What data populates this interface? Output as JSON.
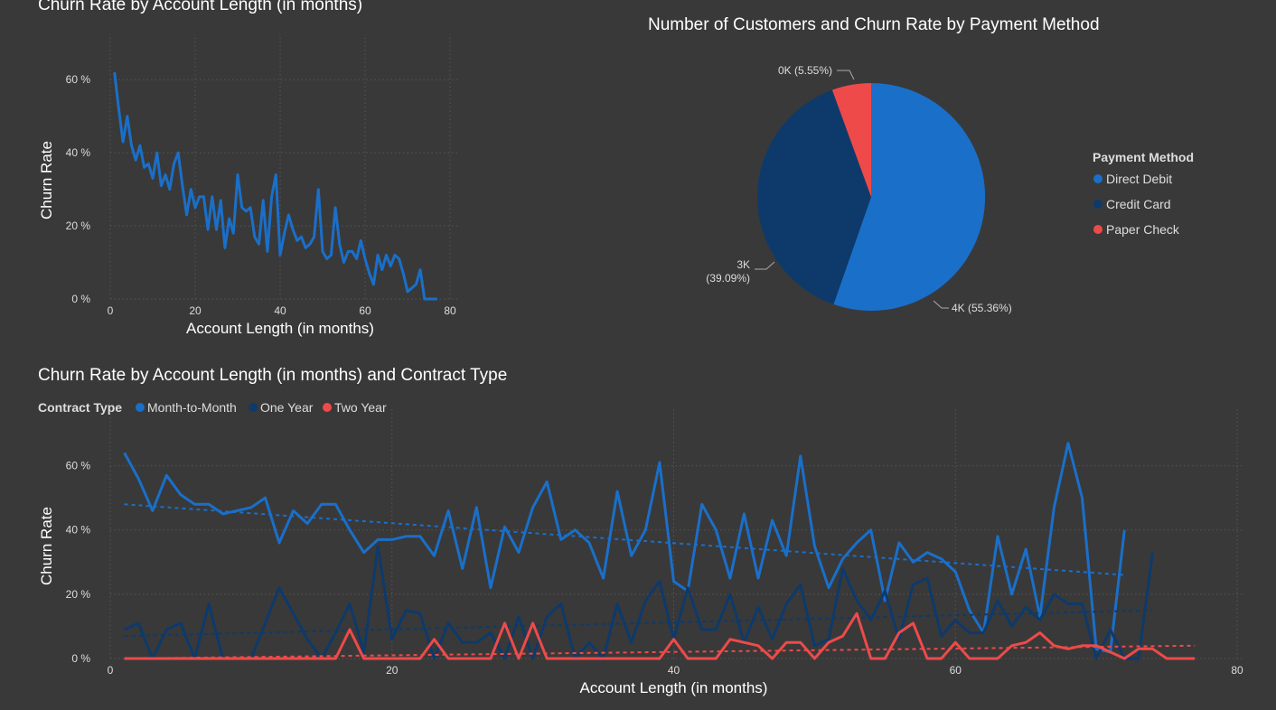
{
  "chart_data": [
    {
      "type": "line",
      "title": "Churn Rate by Account Length (in months)",
      "xlabel": "Account Length (in months)",
      "ylabel": "Churn Rate",
      "xlim": [
        0,
        80
      ],
      "ylim": [
        0,
        65
      ],
      "x_ticks": [
        0,
        20,
        40,
        60,
        80
      ],
      "y_ticks": [
        0,
        20,
        40,
        60
      ],
      "y_tick_labels": [
        "0 %",
        "20 %",
        "40 %",
        "60 %"
      ],
      "grid": true,
      "series": [
        {
          "x": [
            1,
            2,
            3,
            4,
            5,
            6,
            7,
            8,
            9,
            10,
            11,
            12,
            13,
            14,
            15,
            16,
            17,
            18,
            19,
            20,
            21,
            22,
            23,
            24,
            25,
            26,
            27,
            28,
            29,
            30,
            31,
            32,
            33,
            34,
            35,
            36,
            37,
            38,
            39,
            40,
            41,
            42,
            43,
            44,
            45,
            46,
            47,
            48,
            49,
            50,
            51,
            52,
            53,
            54,
            55,
            56,
            57,
            58,
            59,
            60,
            61,
            62,
            63,
            64,
            65,
            66,
            67,
            68,
            69,
            70,
            71,
            72,
            73,
            74,
            75,
            76,
            77
          ],
          "y": [
            62,
            52,
            43,
            50,
            42,
            38,
            42,
            36,
            37,
            33,
            40,
            31,
            34,
            30,
            37,
            40,
            31,
            23,
            30,
            25,
            28,
            28,
            19,
            28,
            19,
            27,
            14,
            22,
            18,
            34,
            25,
            24,
            25,
            17,
            15,
            27,
            13,
            28,
            34,
            12,
            18,
            23,
            19,
            16,
            17,
            14,
            15,
            17,
            30,
            13,
            11,
            12,
            25,
            15,
            10,
            13,
            13,
            11,
            16,
            11,
            7,
            4,
            12,
            8,
            12,
            9,
            12,
            11,
            7,
            2,
            3,
            4,
            8,
            0,
            0,
            0,
            0
          ]
        }
      ]
    },
    {
      "type": "pie",
      "title": "Number of Customers and Churn Rate by Payment Method",
      "legend_title": "Payment Method",
      "legend_placement": "right",
      "slices": [
        {
          "name": "Direct Debit",
          "percent": 55.36,
          "label": "4K (55.36%)",
          "color": "#1a6fc9"
        },
        {
          "name": "Credit Card",
          "percent": 39.09,
          "label_line1": "3K",
          "label_line2": "(39.09%)",
          "color": "#0d3a6b"
        },
        {
          "name": "Paper Check",
          "percent": 5.55,
          "label": "0K (5.55%)",
          "color": "#ee4a4a"
        }
      ]
    },
    {
      "type": "line",
      "title": "Churn Rate by Account Length (in months) and Contract Type",
      "legend_title": "Contract Type",
      "legend_placement": "top-left",
      "xlabel": "Account Length (in months)",
      "ylabel": "Churn Rate",
      "xlim": [
        0,
        80
      ],
      "ylim": [
        0,
        70
      ],
      "x_ticks": [
        0,
        20,
        40,
        60,
        80
      ],
      "y_ticks": [
        0,
        20,
        40,
        60
      ],
      "y_tick_labels": [
        "0 %",
        "20 %",
        "40 %",
        "60 %"
      ],
      "grid": true,
      "trend_lines": true,
      "series": [
        {
          "name": "Month-to-Month",
          "color": "#1a6fc9",
          "x": [
            1,
            2,
            3,
            4,
            5,
            6,
            7,
            8,
            9,
            10,
            11,
            12,
            13,
            14,
            15,
            16,
            17,
            18,
            19,
            20,
            21,
            22,
            23,
            24,
            25,
            26,
            27,
            28,
            29,
            30,
            31,
            32,
            33,
            34,
            35,
            36,
            37,
            38,
            39,
            40,
            41,
            42,
            43,
            44,
            45,
            46,
            47,
            48,
            49,
            50,
            51,
            52,
            53,
            54,
            55,
            56,
            57,
            58,
            59,
            60,
            61,
            62,
            63,
            64,
            65,
            66,
            67,
            68,
            69,
            70,
            71,
            72
          ],
          "y": [
            64,
            56,
            46,
            57,
            51,
            48,
            48,
            45,
            46,
            47,
            50,
            36,
            46,
            42,
            48,
            48,
            40,
            33,
            37,
            37,
            38,
            38,
            32,
            46,
            28,
            47,
            22,
            41,
            33,
            47,
            55,
            37,
            40,
            36,
            25,
            52,
            32,
            40,
            61,
            24,
            21,
            48,
            40,
            25,
            45,
            25,
            43,
            32,
            63,
            35,
            22,
            31,
            36,
            40,
            18,
            36,
            30,
            33,
            31,
            27,
            15,
            8,
            38,
            20,
            34,
            13,
            47,
            67,
            50,
            3,
            2,
            40
          ],
          "trend": [
            48,
            26
          ]
        },
        {
          "name": "One Year",
          "color": "#0d3a6b",
          "x": [
            1,
            2,
            3,
            4,
            5,
            6,
            7,
            8,
            9,
            10,
            11,
            12,
            13,
            14,
            15,
            16,
            17,
            18,
            19,
            20,
            21,
            22,
            23,
            24,
            25,
            26,
            27,
            28,
            29,
            30,
            31,
            32,
            33,
            34,
            35,
            36,
            37,
            38,
            39,
            40,
            41,
            42,
            43,
            44,
            45,
            46,
            47,
            48,
            49,
            50,
            51,
            52,
            53,
            54,
            55,
            56,
            57,
            58,
            59,
            60,
            61,
            62,
            63,
            64,
            65,
            66,
            67,
            68,
            69,
            70,
            71,
            72,
            73,
            74
          ],
          "y": [
            9,
            11,
            0,
            9,
            11,
            0,
            17,
            0,
            0,
            0,
            11,
            22,
            14,
            6,
            0,
            8,
            17,
            2,
            35,
            6,
            15,
            14,
            0,
            11,
            5,
            5,
            8,
            0,
            13,
            0,
            13,
            17,
            0,
            5,
            0,
            17,
            5,
            18,
            24,
            6,
            22,
            9,
            9,
            20,
            5,
            16,
            6,
            17,
            23,
            4,
            6,
            28,
            18,
            12,
            21,
            6,
            23,
            25,
            7,
            12,
            8,
            8,
            18,
            10,
            16,
            12,
            20,
            17,
            17,
            0,
            9,
            0,
            0,
            33
          ],
          "trend": [
            7,
            15
          ]
        },
        {
          "name": "Two Year",
          "color": "#ee4a4a",
          "x": [
            1,
            2,
            3,
            4,
            5,
            6,
            7,
            8,
            9,
            10,
            11,
            12,
            13,
            14,
            15,
            16,
            17,
            18,
            19,
            20,
            21,
            22,
            23,
            24,
            25,
            26,
            27,
            28,
            29,
            30,
            31,
            32,
            33,
            34,
            35,
            36,
            37,
            38,
            39,
            40,
            41,
            42,
            43,
            44,
            45,
            46,
            47,
            48,
            49,
            50,
            51,
            52,
            53,
            54,
            55,
            56,
            57,
            58,
            59,
            60,
            61,
            62,
            63,
            64,
            65,
            66,
            67,
            68,
            69,
            70,
            71,
            72,
            73,
            74,
            75,
            76,
            77
          ],
          "y": [
            0,
            0,
            0,
            0,
            0,
            0,
            0,
            0,
            0,
            0,
            0,
            0,
            0,
            0,
            0,
            0,
            9,
            0,
            0,
            0,
            0,
            0,
            6,
            0,
            0,
            0,
            0,
            11,
            0,
            11,
            0,
            0,
            0,
            0,
            0,
            0,
            0,
            0,
            0,
            6,
            0,
            0,
            0,
            6,
            5,
            4,
            0,
            5,
            5,
            0,
            5,
            7,
            14,
            0,
            0,
            8,
            11,
            0,
            0,
            5,
            0,
            0,
            0,
            4,
            5,
            8,
            4,
            3,
            4,
            4,
            2,
            0,
            3,
            3,
            0,
            0,
            0
          ],
          "trend": [
            0,
            4
          ]
        }
      ]
    }
  ]
}
